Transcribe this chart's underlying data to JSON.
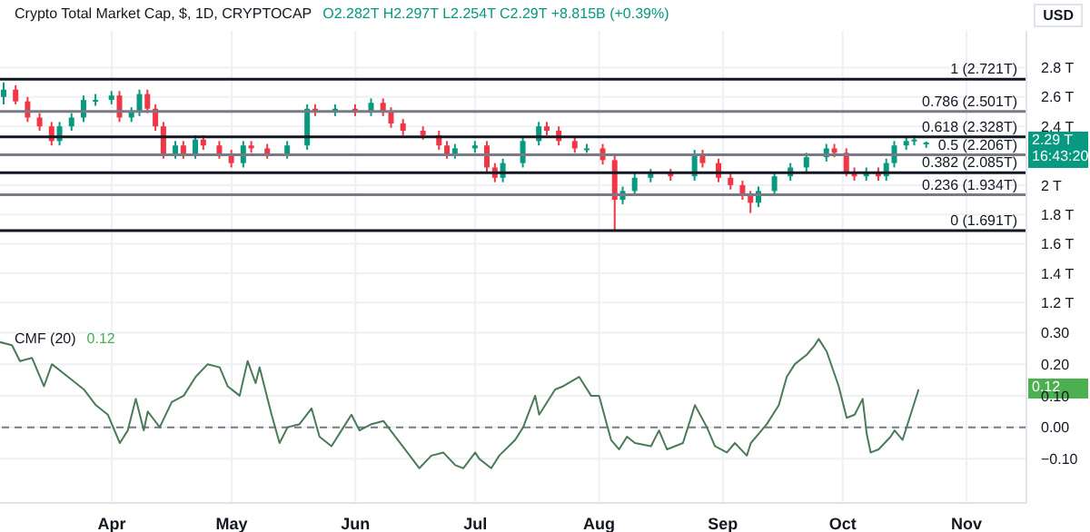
{
  "chart_data": [
    {
      "type": "candlestick",
      "title": "Crypto Total Market Cap, $, 1D, CRYPTOCAP",
      "subtitle": "O2.282T H2.297T L2.254T C2.29T +8.815B (+0.39%)",
      "ylabel": "USD",
      "x": [
        "--03-05",
        "--03-08",
        "--03-11",
        "--03-14",
        "--03-17",
        "--03-19",
        "--03-22",
        "--03-25",
        "--03-28",
        "--04-01",
        "--04-03",
        "--04-06",
        "--04-08",
        "--04-10",
        "--04-12",
        "--04-14",
        "--04-17",
        "--04-19",
        "--04-22",
        "--04-24",
        "--04-28",
        "--05-01",
        "--05-04",
        "--05-06",
        "--05-10",
        "--05-15",
        "--05-20",
        "--05-22",
        "--05-27",
        "--06-01",
        "--06-05",
        "--06-08",
        "--06-10",
        "--06-13",
        "--06-18",
        "--06-22",
        "--06-24",
        "--06-26",
        "--07-01",
        "--07-04",
        "--07-06",
        "--07-08",
        "--07-13",
        "--07-17",
        "--07-19",
        "--07-22",
        "--07-26",
        "--07-29",
        "--08-02",
        "--08-05",
        "--08-07",
        "--08-10",
        "--08-14",
        "--08-19",
        "--08-25",
        "--08-27",
        "--08-31",
        "--09-03",
        "--09-06",
        "--09-08",
        "--09-10",
        "--09-14",
        "--09-18",
        "--09-22",
        "--09-27",
        "--09-29",
        "--10-02",
        "--10-04",
        "--10-07",
        "--10-10",
        "--10-12",
        "--10-14",
        "--10-17",
        "--10-19",
        "--10-22"
      ],
      "ohlc": [
        [
          2.6,
          2.7,
          2.55,
          2.65
        ],
        [
          2.65,
          2.68,
          2.55,
          2.57
        ],
        [
          2.57,
          2.6,
          2.43,
          2.46
        ],
        [
          2.46,
          2.49,
          2.37,
          2.4
        ],
        [
          2.4,
          2.43,
          2.27,
          2.3
        ],
        [
          2.3,
          2.43,
          2.27,
          2.4
        ],
        [
          2.4,
          2.49,
          2.37,
          2.46
        ],
        [
          2.46,
          2.61,
          2.43,
          2.58
        ],
        [
          2.58,
          2.62,
          2.54,
          2.58
        ],
        [
          2.58,
          2.64,
          2.55,
          2.61
        ],
        [
          2.61,
          2.64,
          2.43,
          2.46
        ],
        [
          2.46,
          2.53,
          2.43,
          2.5
        ],
        [
          2.5,
          2.65,
          2.47,
          2.62
        ],
        [
          2.62,
          2.65,
          2.49,
          2.52
        ],
        [
          2.52,
          2.55,
          2.37,
          2.4
        ],
        [
          2.4,
          2.43,
          2.18,
          2.21
        ],
        [
          2.21,
          2.3,
          2.18,
          2.27
        ],
        [
          2.27,
          2.3,
          2.18,
          2.21
        ],
        [
          2.21,
          2.34,
          2.18,
          2.31
        ],
        [
          2.31,
          2.34,
          2.24,
          2.27
        ],
        [
          2.27,
          2.3,
          2.18,
          2.21
        ],
        [
          2.21,
          2.24,
          2.12,
          2.15
        ],
        [
          2.15,
          2.3,
          2.12,
          2.27
        ],
        [
          2.27,
          2.3,
          2.22,
          2.25
        ],
        [
          2.25,
          2.28,
          2.18,
          2.21
        ],
        [
          2.21,
          2.3,
          2.18,
          2.27
        ],
        [
          2.27,
          2.55,
          2.24,
          2.52
        ],
        [
          2.52,
          2.55,
          2.47,
          2.5
        ],
        [
          2.5,
          2.55,
          2.47,
          2.52
        ],
        [
          2.52,
          2.55,
          2.47,
          2.5
        ],
        [
          2.5,
          2.59,
          2.47,
          2.56
        ],
        [
          2.56,
          2.59,
          2.47,
          2.5
        ],
        [
          2.5,
          2.53,
          2.39,
          2.42
        ],
        [
          2.42,
          2.45,
          2.34,
          2.37
        ],
        [
          2.37,
          2.4,
          2.31,
          2.34
        ],
        [
          2.34,
          2.37,
          2.24,
          2.27
        ],
        [
          2.27,
          2.3,
          2.18,
          2.21
        ],
        [
          2.21,
          2.28,
          2.18,
          2.25
        ],
        [
          2.25,
          2.3,
          2.22,
          2.27
        ],
        [
          2.27,
          2.3,
          2.09,
          2.12
        ],
        [
          2.12,
          2.15,
          2.02,
          2.05
        ],
        [
          2.05,
          2.18,
          2.02,
          2.15
        ],
        [
          2.15,
          2.33,
          2.12,
          2.3
        ],
        [
          2.3,
          2.43,
          2.27,
          2.4
        ],
        [
          2.4,
          2.43,
          2.34,
          2.37
        ],
        [
          2.37,
          2.4,
          2.27,
          2.3
        ],
        [
          2.3,
          2.33,
          2.22,
          2.25
        ],
        [
          2.25,
          2.28,
          2.22,
          2.25
        ],
        [
          2.25,
          2.28,
          2.14,
          2.17
        ],
        [
          2.17,
          2.2,
          1.691,
          1.9
        ],
        [
          1.9,
          1.99,
          1.87,
          1.96
        ],
        [
          1.96,
          2.08,
          1.93,
          2.05
        ],
        [
          2.05,
          2.11,
          2.02,
          2.08
        ],
        [
          2.08,
          2.11,
          2.03,
          2.06
        ],
        [
          2.06,
          2.24,
          2.03,
          2.21
        ],
        [
          2.21,
          2.24,
          2.12,
          2.15
        ],
        [
          2.15,
          2.18,
          2.02,
          2.05
        ],
        [
          2.05,
          2.08,
          1.97,
          2.0
        ],
        [
          2.0,
          2.03,
          1.9,
          1.93
        ],
        [
          1.93,
          1.96,
          1.81,
          1.88
        ],
        [
          1.88,
          1.99,
          1.85,
          1.96
        ],
        [
          1.96,
          2.09,
          1.93,
          2.06
        ],
        [
          2.06,
          2.15,
          2.03,
          2.12
        ],
        [
          2.12,
          2.22,
          2.09,
          2.19
        ],
        [
          2.19,
          2.28,
          2.16,
          2.25
        ],
        [
          2.25,
          2.28,
          2.19,
          2.22
        ],
        [
          2.22,
          2.25,
          2.06,
          2.09
        ],
        [
          2.09,
          2.12,
          2.03,
          2.06
        ],
        [
          2.06,
          2.12,
          2.03,
          2.09
        ],
        [
          2.09,
          2.12,
          2.03,
          2.06
        ],
        [
          2.06,
          2.18,
          2.03,
          2.15
        ],
        [
          2.15,
          2.3,
          2.12,
          2.27
        ],
        [
          2.27,
          2.33,
          2.24,
          2.3
        ],
        [
          2.3,
          2.34,
          2.27,
          2.31
        ],
        [
          2.282,
          2.297,
          2.254,
          2.29
        ]
      ],
      "xlim": [
        "--03-04",
        "--11-16"
      ],
      "xticks": [
        {
          "value": "--04-01",
          "label": null
        },
        {
          "value": "--05-01",
          "label": null
        },
        {
          "value": "--06-01",
          "label": null
        },
        {
          "value": "--07-01",
          "label": null
        },
        {
          "value": "--08-01",
          "label": null
        },
        {
          "value": "--09-01",
          "label": null
        },
        {
          "value": "--10-01",
          "label": null
        },
        {
          "value": "--11-01",
          "label": null
        }
      ],
      "ylim": [
        1.06,
        3.05
      ],
      "yticks": [
        {
          "value": 1.2,
          "label": "1.2 T"
        },
        {
          "value": 1.4,
          "label": "1.4 T"
        },
        {
          "value": 1.6,
          "label": "1.6 T"
        },
        {
          "value": 1.8,
          "label": "1.8 T"
        },
        {
          "value": 2,
          "label": "2 T"
        },
        {
          "value": 2.4,
          "label": "2.4 T"
        },
        {
          "value": 2.6,
          "label": "2.6 T"
        },
        {
          "value": 2.8,
          "label": "2.8 T"
        }
      ],
      "ref_lines": [
        {
          "axis": "y",
          "value": 2.721,
          "label": "1 (2.721T)",
          "color": "#131722"
        },
        {
          "axis": "y",
          "value": 2.501,
          "label": "0.786 (2.501T)",
          "color": "#787b86"
        },
        {
          "axis": "y",
          "value": 2.328,
          "label": "0.618 (2.328T)",
          "color": "#131722"
        },
        {
          "axis": "y",
          "value": 2.206,
          "label": "0.5 (2.206T)",
          "color": "#787b86"
        },
        {
          "axis": "y",
          "value": 2.085,
          "label": "0.382 (2.085T)",
          "color": "#131722"
        },
        {
          "axis": "y",
          "value": 1.934,
          "label": "0.236 (1.934T)",
          "color": "#787b86"
        },
        {
          "axis": "y",
          "value": 1.691,
          "label": "0 (1.691T)",
          "color": "#131722"
        }
      ],
      "annotations": [
        "2.29 T\n16:43:20"
      ],
      "grid": true,
      "tick_labels": "y"
    },
    {
      "type": "line",
      "title": "CMF (20)",
      "subtitle": "0.12",
      "x": [
        "--03-04",
        "--03-07",
        "--03-09",
        "--03-12",
        "--03-15",
        "--03-17",
        "--03-21",
        "--03-25",
        "--03-28",
        "--03-31",
        "--04-03",
        "--04-05",
        "--04-07",
        "--04-09",
        "--04-10",
        "--04-13",
        "--04-16",
        "--04-19",
        "--04-22",
        "--04-25",
        "--04-28",
        "--04-30",
        "--05-03",
        "--05-05",
        "--05-07",
        "--05-08",
        "--05-11",
        "--05-13",
        "--05-15",
        "--05-18",
        "--05-21",
        "--05-23",
        "--05-26",
        "--05-29",
        "--05-31",
        "--06-02",
        "--06-05",
        "--06-08",
        "--06-11",
        "--06-14",
        "--06-17",
        "--06-20",
        "--06-23",
        "--06-26",
        "--06-28",
        "--07-01",
        "--07-02",
        "--07-05",
        "--07-07",
        "--07-11",
        "--07-13",
        "--07-16",
        "--07-17",
        "--07-21",
        "--07-23",
        "--07-27",
        "--07-30",
        "--08-01",
        "--08-04",
        "--08-06",
        "--08-08",
        "--08-10",
        "--08-14",
        "--08-16",
        "--08-18",
        "--08-22",
        "--08-25",
        "--08-28",
        "--08-30",
        "--09-02",
        "--09-04",
        "--09-07",
        "--09-08",
        "--09-10",
        "--09-12",
        "--09-15",
        "--09-17",
        "--09-19",
        "--09-22",
        "--09-24",
        "--09-25",
        "--09-27",
        "--09-30",
        "--10-02",
        "--10-04",
        "--10-06",
        "--10-07",
        "--10-08",
        "--10-10",
        "--10-13",
        "--10-14",
        "--10-16",
        "--10-18",
        "--10-20"
      ],
      "series": [
        {
          "color": "#4a7a57",
          "values": [
            0.27,
            0.26,
            0.21,
            0.22,
            0.13,
            0.2,
            0.16,
            0.12,
            0.07,
            0.04,
            -0.05,
            -0.01,
            0.09,
            -0.01,
            0.05,
            0,
            0.08,
            0.1,
            0.16,
            0.2,
            0.19,
            0.13,
            0.1,
            0.21,
            0.14,
            0.19,
            0.04,
            -0.05,
            0,
            0.01,
            0.06,
            -0.03,
            -0.06,
            0,
            0.04,
            -0.01,
            0.01,
            0.02,
            -0.03,
            -0.08,
            -0.13,
            -0.09,
            -0.08,
            -0.12,
            -0.13,
            -0.08,
            -0.1,
            -0.13,
            -0.09,
            -0.04,
            0,
            0.1,
            0.04,
            0.12,
            0.13,
            0.16,
            0.1,
            0.1,
            -0.04,
            -0.07,
            -0.03,
            -0.05,
            -0.06,
            -0.01,
            -0.07,
            -0.05,
            0.07,
            0,
            -0.06,
            -0.08,
            -0.05,
            -0.09,
            -0.05,
            -0.02,
            0.01,
            0.07,
            0.16,
            0.2,
            0.23,
            0.26,
            0.28,
            0.24,
            0.13,
            0.03,
            0.04,
            0.09,
            -0.02,
            -0.08,
            -0.07,
            -0.03,
            -0.01,
            -0.04,
            0.04,
            0.12
          ]
        }
      ],
      "xlim": [
        "--03-04",
        "--11-16"
      ],
      "xticks": [
        {
          "value": "--04-01",
          "label": "Apr"
        },
        {
          "value": "--05-01",
          "label": "May"
        },
        {
          "value": "--06-01",
          "label": "Jun"
        },
        {
          "value": "--07-01",
          "label": "Jul"
        },
        {
          "value": "--08-01",
          "label": "Aug"
        },
        {
          "value": "--09-01",
          "label": "Sep"
        },
        {
          "value": "--10-01",
          "label": "Oct"
        },
        {
          "value": "--11-01",
          "label": "Nov"
        }
      ],
      "ylim": [
        -0.24,
        0.33
      ],
      "yticks": [
        {
          "value": -0.1,
          "label": "−0.10"
        },
        {
          "value": 0,
          "label": "0.00"
        },
        {
          "value": 0.1,
          "label": "0.10"
        },
        {
          "value": 0.2,
          "label": "0.20"
        },
        {
          "value": 0.3,
          "label": "0.30"
        }
      ],
      "ref_lines": [
        {
          "axis": "y",
          "value": 0,
          "color": "#787b86",
          "line_style": "dashed"
        }
      ],
      "annotations": [
        "0.12"
      ],
      "grid": true,
      "marker": "none"
    }
  ]
}
